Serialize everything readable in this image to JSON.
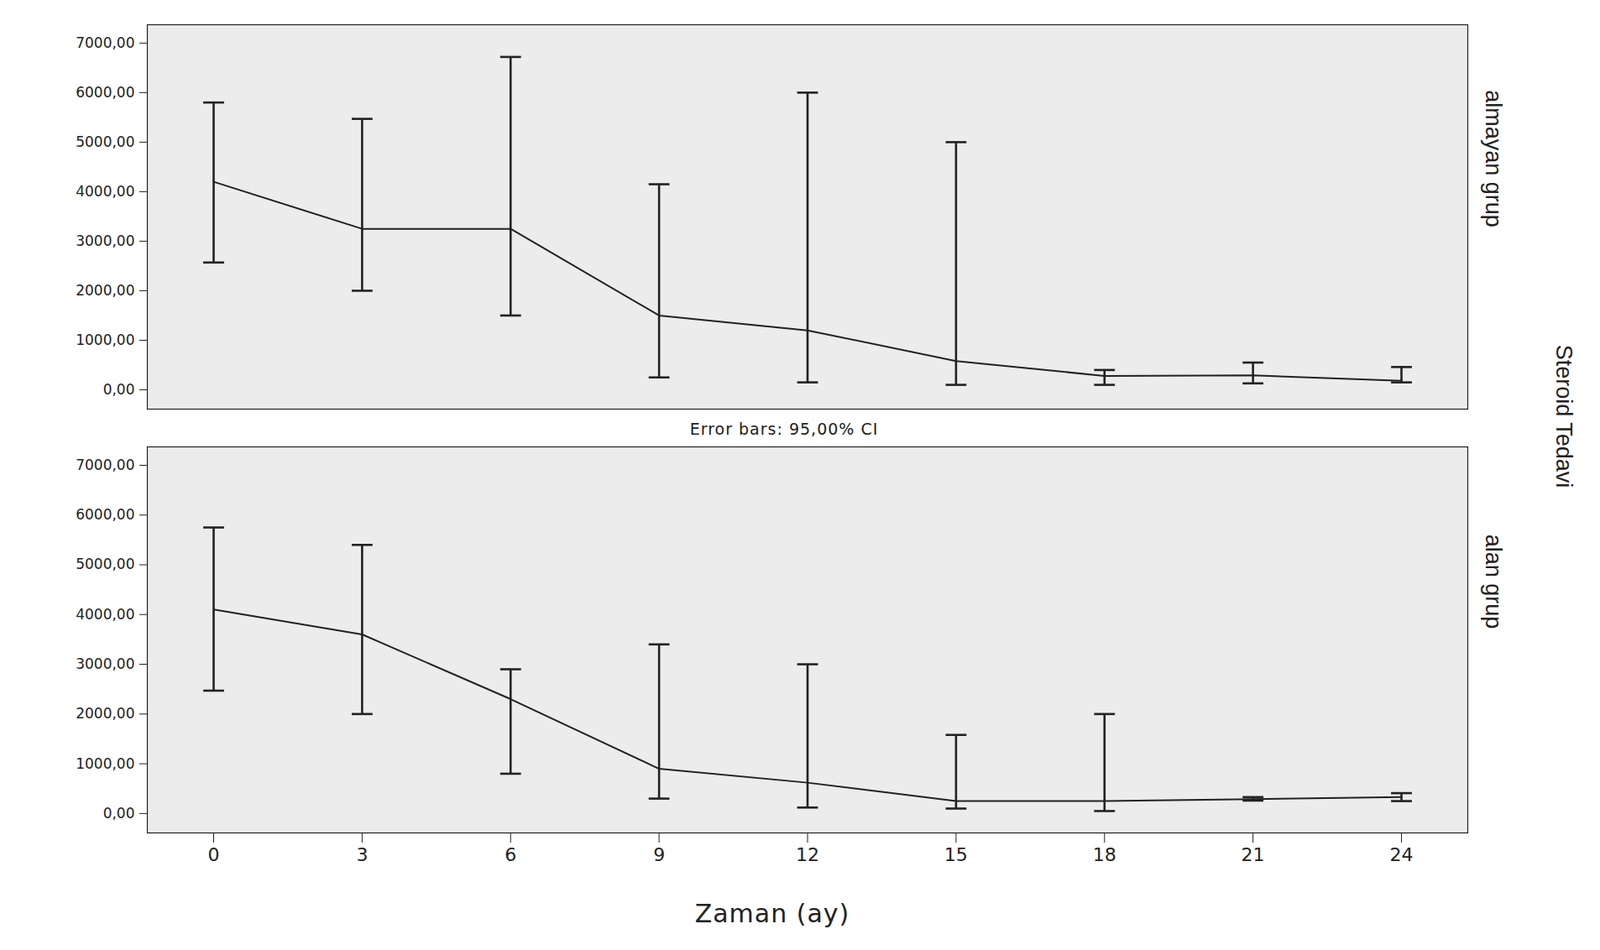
{
  "chart_data": {
    "type": "line",
    "xlabel": "Zaman (ay)",
    "facet_label": "Steroid Tedavi",
    "annotation": "Error bars: 95,00% CI",
    "x": [
      0,
      3,
      6,
      9,
      12,
      15,
      18,
      21,
      24
    ],
    "xlim": [
      -1.34,
      25.34
    ],
    "xticks": [
      0,
      3,
      6,
      9,
      12,
      15,
      18,
      21,
      24
    ],
    "ylim": [
      -390,
      7370
    ],
    "yticks": [
      {
        "value": 0,
        "label": "0,00"
      },
      {
        "value": 1000,
        "label": "1000,00"
      },
      {
        "value": 2000,
        "label": "2000,00"
      },
      {
        "value": 3000,
        "label": "3000,00"
      },
      {
        "value": 4000,
        "label": "4000,00"
      },
      {
        "value": 5000,
        "label": "5000,00"
      },
      {
        "value": 6000,
        "label": "6000,00"
      },
      {
        "value": 7000,
        "label": "7000,00"
      }
    ],
    "series": [
      {
        "name": "almayan grup",
        "color": "#222222",
        "values": [
          4200,
          3250,
          3250,
          1500,
          1200,
          580,
          280,
          290,
          180
        ],
        "ci_lower": [
          2570,
          2000,
          1500,
          250,
          150,
          100,
          100,
          130,
          150
        ],
        "ci_upper": [
          5800,
          5470,
          6720,
          4150,
          6000,
          5000,
          400,
          550,
          460
        ]
      },
      {
        "name": "alan grup",
        "color": "#222222",
        "values": [
          4100,
          3600,
          2300,
          900,
          620,
          250,
          250,
          290,
          330
        ],
        "ci_lower": [
          2470,
          2000,
          800,
          300,
          120,
          100,
          50,
          260,
          250
        ],
        "ci_upper": [
          5750,
          5400,
          2900,
          3400,
          3000,
          1580,
          2000,
          330,
          410
        ]
      }
    ]
  }
}
